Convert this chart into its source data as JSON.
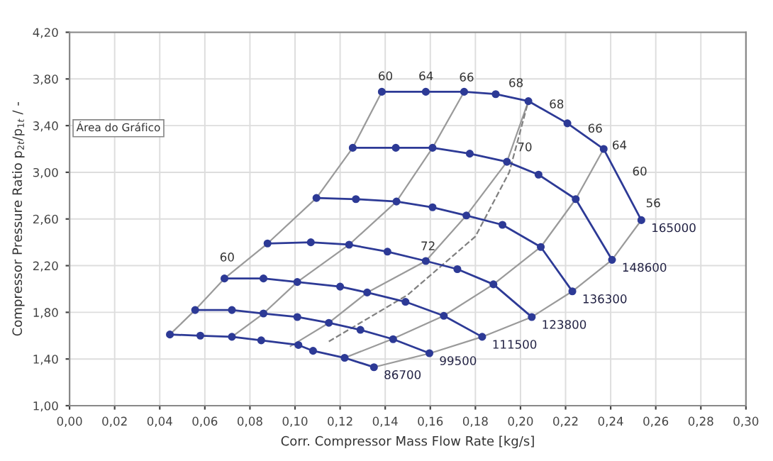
{
  "chart_data": {
    "type": "line",
    "xlabel": "Corr. Compressor Mass Flow Rate [kg/s]",
    "ylabel": "Compressor Pressure Ratio p$_{2t}$/p$_{1t}$ / -",
    "xlim": [
      0,
      0.3
    ],
    "ylim": [
      1.0,
      4.2
    ],
    "xticks": [
      {
        "value": 0,
        "label": "0,00"
      },
      {
        "value": 0.02,
        "label": "0,02"
      },
      {
        "value": 0.04,
        "label": "0,04"
      },
      {
        "value": 0.06,
        "label": "0,06"
      },
      {
        "value": 0.08,
        "label": "0,08"
      },
      {
        "value": 0.1,
        "label": "0,10"
      },
      {
        "value": 0.12,
        "label": "0,12"
      },
      {
        "value": 0.14,
        "label": "0,14"
      },
      {
        "value": 0.16,
        "label": "0,16"
      },
      {
        "value": 0.18,
        "label": "0,18"
      },
      {
        "value": 0.2,
        "label": "0,20"
      },
      {
        "value": 0.22,
        "label": "0,22"
      },
      {
        "value": 0.24,
        "label": "0,24"
      },
      {
        "value": 0.26,
        "label": "0,26"
      },
      {
        "value": 0.28,
        "label": "0,28"
      },
      {
        "value": 0.3,
        "label": "0,30"
      }
    ],
    "yticks": [
      {
        "value": 1.0,
        "label": "1,00"
      },
      {
        "value": 1.4,
        "label": "1,40"
      },
      {
        "value": 1.8,
        "label": "1,80"
      },
      {
        "value": 2.2,
        "label": "2,20"
      },
      {
        "value": 2.6,
        "label": "2,60"
      },
      {
        "value": 3.0,
        "label": "3,00"
      },
      {
        "value": 3.4,
        "label": "3,40"
      },
      {
        "value": 3.8,
        "label": "3,80"
      },
      {
        "value": 4.2,
        "label": "4,20"
      }
    ],
    "grid": true,
    "legend": false,
    "series": [
      {
        "color": "#9a9a9a",
        "marker": "none",
        "line_style": "solid",
        "x": [
          0.0445,
          0.0557,
          0.0687,
          0.0878,
          0.1095,
          0.1256,
          0.1385
        ],
        "values": [
          1.61,
          1.82,
          2.09,
          2.39,
          2.78,
          3.21,
          3.69
        ]
      },
      {
        "color": "#9a9a9a",
        "marker": "none",
        "line_style": "solid",
        "x": [
          0.072,
          0.086,
          0.101,
          0.124,
          0.145,
          0.161,
          0.175
        ],
        "values": [
          1.59,
          1.79,
          2.06,
          2.38,
          2.75,
          3.21,
          3.69
        ]
      },
      {
        "color": "#9a9a9a",
        "marker": "none",
        "line_style": "solid",
        "x": [
          0.098,
          0.115,
          0.132,
          0.158,
          0.176,
          0.194,
          0.2035
        ],
        "values": [
          1.51,
          1.71,
          1.97,
          2.24,
          2.63,
          3.09,
          3.61
        ]
      },
      {
        "color": "#9a9a9a",
        "marker": "none",
        "line_style": "solid",
        "x": [
          0.122,
          0.143,
          0.166,
          0.188,
          0.209,
          0.2245,
          0.2369
        ],
        "values": [
          1.41,
          1.57,
          1.77,
          2.04,
          2.36,
          2.77,
          3.2
        ]
      },
      {
        "color": "#9a9a9a",
        "marker": "none",
        "line_style": "solid",
        "x": [
          0.135,
          0.16,
          0.183,
          0.205,
          0.223,
          0.2406,
          0.2536
        ],
        "values": [
          1.33,
          1.45,
          1.59,
          1.76,
          1.98,
          2.25,
          2.59
        ]
      },
      {
        "color": "#808080",
        "marker": "none",
        "line_style": "dashed",
        "x": [
          0.115,
          0.15,
          0.18,
          0.195,
          0.2035
        ],
        "values": [
          1.55,
          1.95,
          2.45,
          3.0,
          3.61
        ]
      },
      {
        "name": "86700",
        "color": "#2d3a96",
        "marker": "circle",
        "line_style": "solid",
        "x": [
          0.0445,
          0.058,
          0.072,
          0.085,
          0.1015,
          0.108,
          0.122,
          0.135
        ],
        "values": [
          1.61,
          1.6,
          1.59,
          1.56,
          1.52,
          1.47,
          1.41,
          1.33
        ]
      },
      {
        "name": "99500",
        "color": "#2d3a96",
        "marker": "circle",
        "line_style": "solid",
        "x": [
          0.0557,
          0.072,
          0.086,
          0.101,
          0.115,
          0.129,
          0.1435,
          0.1596
        ],
        "values": [
          1.82,
          1.82,
          1.79,
          1.76,
          1.71,
          1.65,
          1.57,
          1.45
        ]
      },
      {
        "name": "111500",
        "color": "#2d3a96",
        "marker": "circle",
        "line_style": "solid",
        "x": [
          0.0687,
          0.086,
          0.101,
          0.12,
          0.132,
          0.149,
          0.166,
          0.183
        ],
        "values": [
          2.09,
          2.09,
          2.06,
          2.02,
          1.97,
          1.89,
          1.77,
          1.59
        ]
      },
      {
        "name": "123800",
        "color": "#2d3a96",
        "marker": "circle",
        "line_style": "solid",
        "x": [
          0.0878,
          0.107,
          0.124,
          0.141,
          0.158,
          0.172,
          0.188,
          0.205
        ],
        "values": [
          2.39,
          2.4,
          2.38,
          2.32,
          2.24,
          2.17,
          2.04,
          1.76
        ]
      },
      {
        "name": "136300",
        "color": "#2d3a96",
        "marker": "circle",
        "line_style": "solid",
        "x": [
          0.1095,
          0.127,
          0.145,
          0.161,
          0.176,
          0.192,
          0.209,
          0.223
        ],
        "values": [
          2.78,
          2.77,
          2.75,
          2.7,
          2.63,
          2.55,
          2.36,
          1.98
        ]
      },
      {
        "name": "148600",
        "color": "#2d3a96",
        "marker": "circle",
        "line_style": "solid",
        "x": [
          0.1256,
          0.1447,
          0.161,
          0.1775,
          0.194,
          0.208,
          0.2245,
          0.2406
        ],
        "values": [
          3.21,
          3.21,
          3.21,
          3.16,
          3.09,
          2.98,
          2.77,
          2.25
        ]
      },
      {
        "name": "165000",
        "color": "#2d3a96",
        "marker": "circle",
        "line_style": "solid",
        "x": [
          0.1385,
          0.158,
          0.175,
          0.189,
          0.2035,
          0.2208,
          0.2369,
          0.2536
        ],
        "values": [
          3.69,
          3.69,
          3.69,
          3.67,
          3.61,
          3.42,
          3.2,
          2.59
        ]
      }
    ],
    "annotations": [
      "Área do Gráfico",
      "60",
      "64",
      "66",
      "68",
      "68",
      "66",
      "64",
      "60",
      "56",
      "70",
      "72",
      "60"
    ]
  }
}
